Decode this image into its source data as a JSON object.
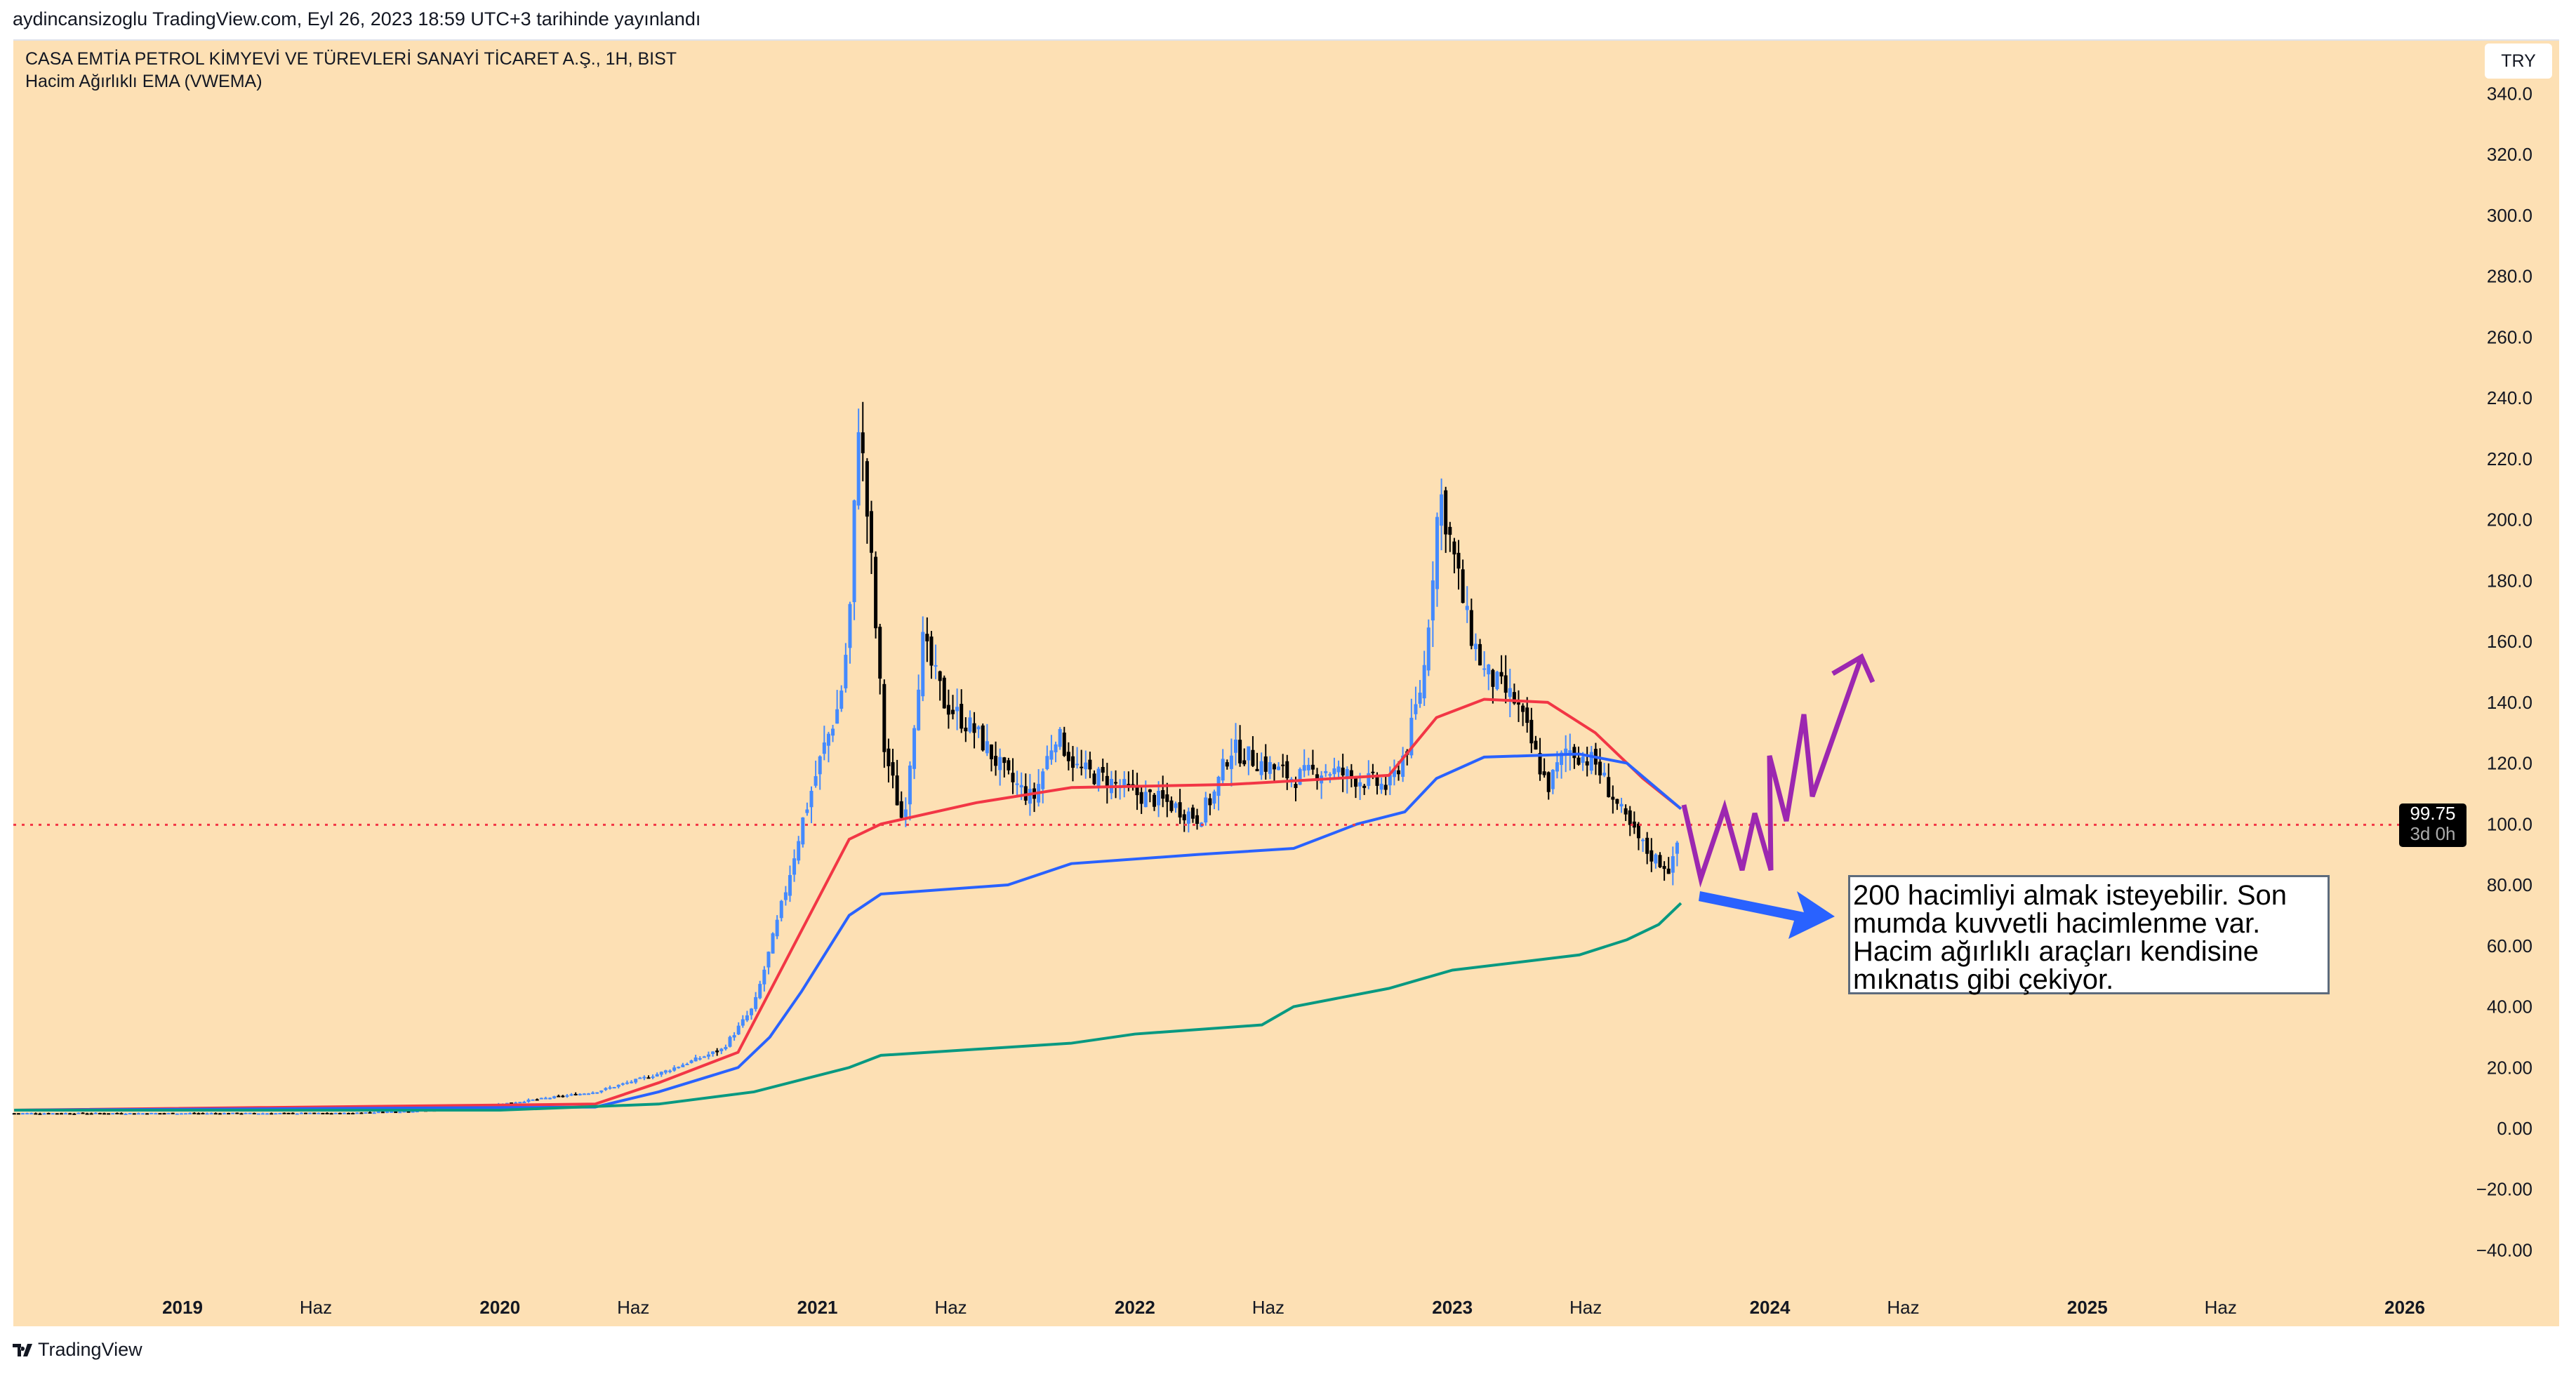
{
  "header": {
    "published": "aydincansizoglu TradingView.com, Eyl 26, 2023 18:59 UTC+3 tarihinde yayınlandı"
  },
  "chart_header": {
    "symbol": "CASA EMTİA PETROL KİMYEVİ VE TÜREVLERİ SANAYİ TİCARET A.Ş., 1H, BIST",
    "indicator": "Hacim Ağırlıklı EMA (VWEMA)"
  },
  "currency_button": "TRY",
  "last_price": {
    "value": "99.75",
    "countdown": "3d 0h"
  },
  "annotation": "200 hacimliyi almak isteyebilir. Son mumda kuvvetli hacimlenme var. Hacim ağırlıklı araçları kendisine mıknatıs gibi çekiyor.",
  "footer": {
    "logo": "TradingView"
  },
  "colors": {
    "background": "#fde0b4",
    "up": "#448aff",
    "down": "#000000",
    "vwema_fast": "#f23645",
    "vwema_mid": "#2962ff",
    "vwema_slow": "#089981",
    "arrow": "#2962ff",
    "zigzag": "#9c27b0",
    "last_price_line": "#f23645"
  },
  "chart_data": {
    "type": "candlestick",
    "y_ticks": [
      "340.0",
      "320.0",
      "300.0",
      "280.0",
      "260.0",
      "240.0",
      "220.0",
      "200.0",
      "180.0",
      "160.0",
      "140.0",
      "120.0",
      "100.0",
      "80.00",
      "60.00",
      "40.00",
      "20.00",
      "0.00",
      "−20.00",
      "−40.00"
    ],
    "y_tick_values": [
      340,
      320,
      300,
      280,
      260,
      240,
      220,
      200,
      180,
      160,
      140,
      120,
      100,
      80,
      60,
      40,
      20,
      0,
      -20,
      -40
    ],
    "ylim": [
      -48,
      350
    ],
    "x_ticks": [
      "2019",
      "Haz",
      "2020",
      "Haz",
      "2021",
      "Haz",
      "2022",
      "Haz",
      "2023",
      "Haz",
      "2024",
      "Haz",
      "2025",
      "Haz",
      "2026"
    ],
    "x_tick_values": [
      2019,
      2019.42,
      2020,
      2020.42,
      2021,
      2021.42,
      2022,
      2022.42,
      2023,
      2023.42,
      2024,
      2024.42,
      2025,
      2025.42,
      2026
    ],
    "xlim": [
      2018.47,
      2026.15
    ],
    "price_path": [
      [
        2018.47,
        5
      ],
      [
        2019.0,
        5
      ],
      [
        2019.5,
        5
      ],
      [
        2019.8,
        6
      ],
      [
        2020.0,
        8
      ],
      [
        2020.3,
        12
      ],
      [
        2020.5,
        18
      ],
      [
        2020.7,
        26
      ],
      [
        2020.8,
        40
      ],
      [
        2020.88,
        70
      ],
      [
        2020.95,
        100
      ],
      [
        2021.02,
        125
      ],
      [
        2021.07,
        140
      ],
      [
        2021.1,
        165
      ],
      [
        2021.13,
        235
      ],
      [
        2021.17,
        185
      ],
      [
        2021.21,
        125
      ],
      [
        2021.27,
        100
      ],
      [
        2021.33,
        160
      ],
      [
        2021.4,
        140
      ],
      [
        2021.5,
        130
      ],
      [
        2021.6,
        115
      ],
      [
        2021.68,
        108
      ],
      [
        2021.75,
        130
      ],
      [
        2021.82,
        118
      ],
      [
        2021.9,
        115
      ],
      [
        2022.0,
        110
      ],
      [
        2022.1,
        107
      ],
      [
        2022.2,
        102
      ],
      [
        2022.25,
        110
      ],
      [
        2022.3,
        125
      ],
      [
        2022.4,
        120
      ],
      [
        2022.5,
        115
      ],
      [
        2022.6,
        118
      ],
      [
        2022.7,
        115
      ],
      [
        2022.8,
        112
      ],
      [
        2022.86,
        126
      ],
      [
        2022.91,
        150
      ],
      [
        2022.96,
        210
      ],
      [
        2023.0,
        190
      ],
      [
        2023.05,
        165
      ],
      [
        2023.1,
        150
      ],
      [
        2023.2,
        140
      ],
      [
        2023.3,
        112
      ],
      [
        2023.36,
        125
      ],
      [
        2023.45,
        120
      ],
      [
        2023.55,
        100
      ],
      [
        2023.62,
        90
      ],
      [
        2023.69,
        85
      ],
      [
        2023.72,
        99.75
      ]
    ],
    "series": [
      {
        "points": [
          [
            2018.47,
            6
          ],
          [
            2020.3,
            8
          ],
          [
            2020.5,
            15
          ],
          [
            2020.75,
            25
          ],
          [
            2020.85,
            45
          ],
          [
            2020.95,
            65
          ],
          [
            2021.1,
            95
          ],
          [
            2021.2,
            100
          ],
          [
            2021.5,
            107
          ],
          [
            2021.8,
            112
          ],
          [
            2022.3,
            113
          ],
          [
            2022.8,
            116
          ],
          [
            2022.95,
            135
          ],
          [
            2023.1,
            141
          ],
          [
            2023.3,
            140
          ],
          [
            2023.45,
            130
          ],
          [
            2023.6,
            115
          ],
          [
            2023.72,
            105
          ]
        ]
      },
      {
        "points": [
          [
            2018.47,
            6
          ],
          [
            2020.3,
            7
          ],
          [
            2020.5,
            12
          ],
          [
            2020.75,
            20
          ],
          [
            2020.85,
            30
          ],
          [
            2020.95,
            45
          ],
          [
            2021.1,
            70
          ],
          [
            2021.2,
            77
          ],
          [
            2021.6,
            80
          ],
          [
            2021.8,
            87
          ],
          [
            2022.2,
            90
          ],
          [
            2022.5,
            92
          ],
          [
            2022.7,
            100
          ],
          [
            2022.85,
            104
          ],
          [
            2022.95,
            115
          ],
          [
            2023.1,
            122
          ],
          [
            2023.4,
            123
          ],
          [
            2023.55,
            120
          ],
          [
            2023.72,
            105
          ]
        ]
      },
      {
        "points": [
          [
            2018.47,
            6
          ],
          [
            2020.0,
            6
          ],
          [
            2020.5,
            8
          ],
          [
            2020.8,
            12
          ],
          [
            2021.1,
            20
          ],
          [
            2021.2,
            24
          ],
          [
            2021.8,
            28
          ],
          [
            2022.0,
            31
          ],
          [
            2022.4,
            34
          ],
          [
            2022.5,
            40
          ],
          [
            2022.8,
            46
          ],
          [
            2023.0,
            52
          ],
          [
            2023.4,
            57
          ],
          [
            2023.55,
            62
          ],
          [
            2023.65,
            67
          ],
          [
            2023.72,
            74
          ]
        ]
      }
    ],
    "last_price": 99.75
  }
}
